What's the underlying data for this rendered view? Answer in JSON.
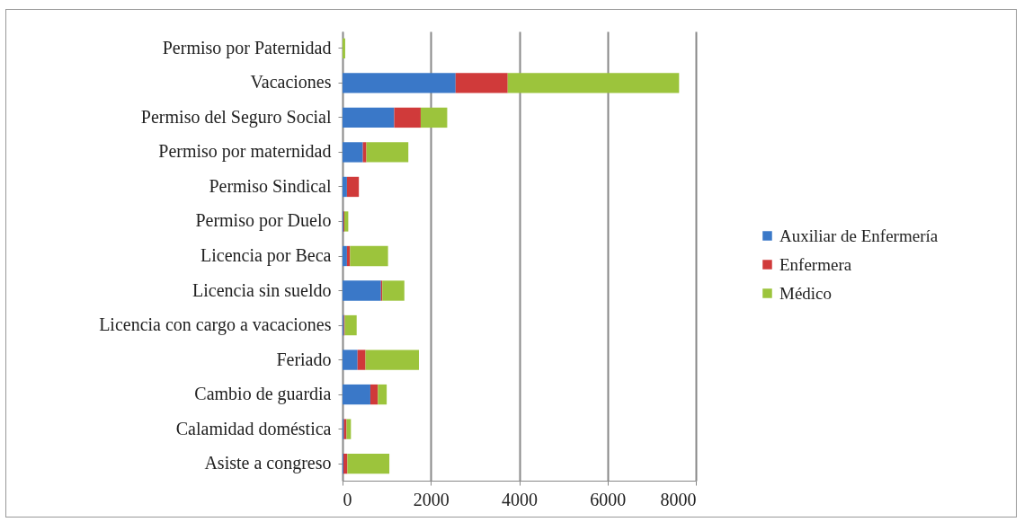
{
  "chart_data": {
    "type": "bar",
    "orientation": "horizontal",
    "stacked": true,
    "categories": [
      "Permiso por Paternidad",
      "Vacaciones",
      "Permiso del Seguro Social",
      "Permiso por maternidad",
      "Permiso Sindical",
      "Permiso por Duelo",
      "Licencia por Beca",
      "Licencia sin sueldo",
      "Licencia con cargo a vacaciones",
      "Feriado",
      "Cambio de guardia",
      "Calamidad doméstica",
      "Asiste a congreso"
    ],
    "series": [
      {
        "name": "Auxiliar de Enfermería",
        "color": "#3a78c8",
        "values": [
          0,
          2560,
          1170,
          460,
          100,
          20,
          100,
          870,
          30,
          340,
          630,
          30,
          20
        ]
      },
      {
        "name": "Enfermera",
        "color": "#d03a3a",
        "values": [
          0,
          1180,
          600,
          80,
          270,
          20,
          70,
          30,
          20,
          180,
          170,
          60,
          90
        ]
      },
      {
        "name": "Médico",
        "color": "#9cc43c",
        "values": [
          60,
          3880,
          600,
          950,
          0,
          90,
          860,
          500,
          270,
          1210,
          200,
          100,
          950
        ]
      }
    ],
    "xlim": [
      0,
      8000
    ],
    "xticks": [
      0,
      2000,
      4000,
      6000,
      8000
    ],
    "grid": "x",
    "legend": "right"
  }
}
